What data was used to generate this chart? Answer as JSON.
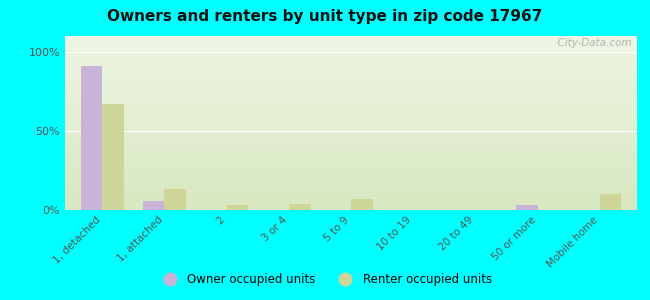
{
  "title": "Owners and renters by unit type in zip code 17967",
  "categories": [
    "1, detached",
    "1, attached",
    "2",
    "3 or 4",
    "5 to 9",
    "10 to 19",
    "20 to 49",
    "50 or more",
    "Mobile home"
  ],
  "owner_values": [
    91,
    6,
    0,
    0,
    0,
    0,
    0,
    3,
    0
  ],
  "renter_values": [
    67,
    13,
    3,
    4,
    7,
    0,
    0,
    0,
    10
  ],
  "owner_color": "#c9b3d9",
  "renter_color": "#cdd698",
  "background_color": "#00ffff",
  "grad_top": "#eef5e4",
  "grad_bottom": "#d8e8c0",
  "ylabel_ticks": [
    0,
    50,
    100
  ],
  "ylabel_labels": [
    "0%",
    "50%",
    "100%"
  ],
  "ylim": [
    0,
    110
  ],
  "bar_width": 0.35,
  "legend_owner": "Owner occupied units",
  "legend_renter": "Renter occupied units",
  "watermark": "  City-Data.com"
}
